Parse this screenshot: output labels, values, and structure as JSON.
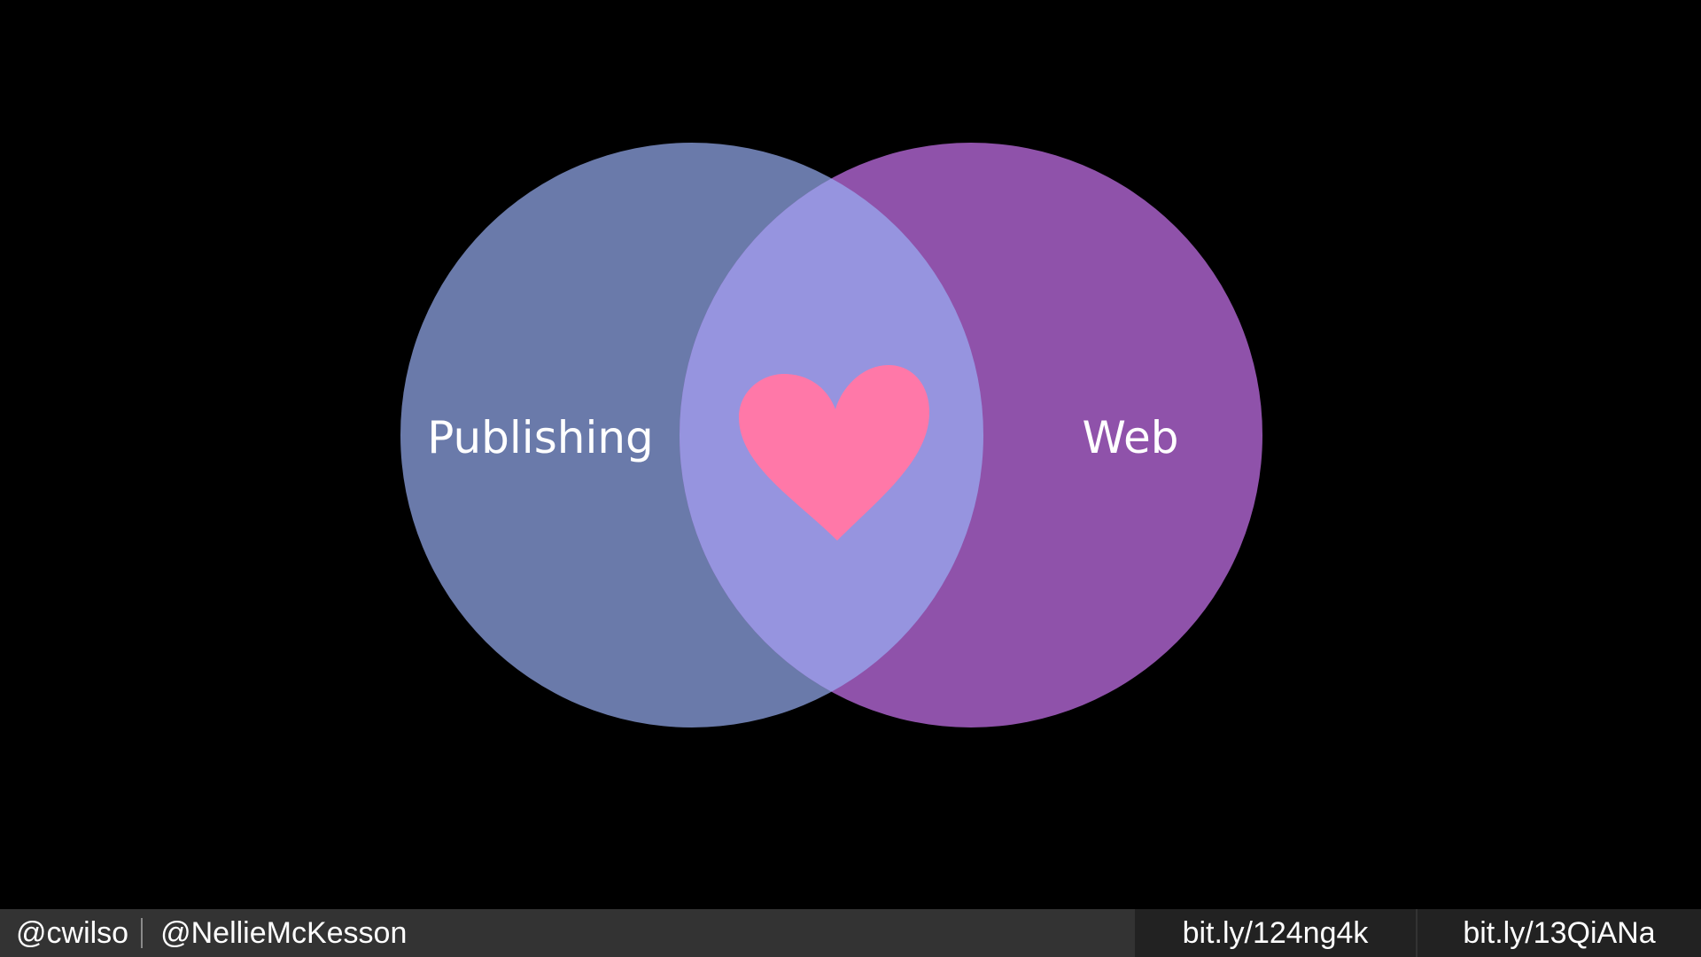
{
  "diagram": {
    "left_circle": {
      "label": "Publishing",
      "color": "#6a7aaa"
    },
    "right_circle": {
      "label": "Web",
      "color": "#8f52aa"
    },
    "overlap": {
      "color": "#9694df",
      "icon": "heart-icon",
      "icon_color": "#ff78a8"
    }
  },
  "footer": {
    "handle_1": "@cwilso",
    "handle_2": "@NellieMcKesson",
    "link_1": "bit.ly/124ng4k",
    "link_2": "bit.ly/13QiANa"
  }
}
